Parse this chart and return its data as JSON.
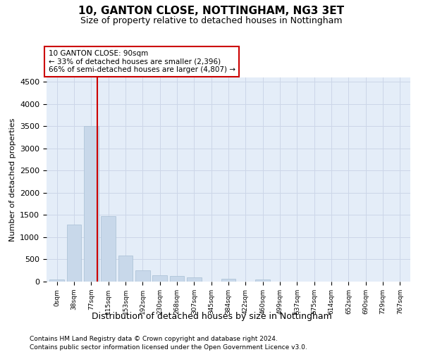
{
  "title": "10, GANTON CLOSE, NOTTINGHAM, NG3 3ET",
  "subtitle": "Size of property relative to detached houses in Nottingham",
  "xlabel": "Distribution of detached houses by size in Nottingham",
  "ylabel": "Number of detached properties",
  "bar_color": "#c8d8ea",
  "bar_edge_color": "#a8bfd4",
  "grid_color": "#ccd6e8",
  "bg_color": "#e4edf8",
  "annotation_box_color": "#cc0000",
  "property_line_color": "#cc0000",
  "annotation_line1": "10 GANTON CLOSE: 90sqm",
  "annotation_line2": "← 33% of detached houses are smaller (2,396)",
  "annotation_line3": "66% of semi-detached houses are larger (4,807) →",
  "categories": [
    "0sqm",
    "38sqm",
    "77sqm",
    "115sqm",
    "153sqm",
    "192sqm",
    "230sqm",
    "268sqm",
    "307sqm",
    "345sqm",
    "384sqm",
    "422sqm",
    "460sqm",
    "499sqm",
    "537sqm",
    "575sqm",
    "614sqm",
    "652sqm",
    "690sqm",
    "729sqm",
    "767sqm"
  ],
  "values": [
    50,
    1280,
    3500,
    1480,
    580,
    260,
    150,
    130,
    90,
    0,
    60,
    0,
    50,
    0,
    0,
    0,
    0,
    0,
    0,
    0,
    0
  ],
  "ylim": [
    0,
    4600
  ],
  "yticks": [
    0,
    500,
    1000,
    1500,
    2000,
    2500,
    3000,
    3500,
    4000,
    4500
  ],
  "footer_line1": "Contains HM Land Registry data © Crown copyright and database right 2024.",
  "footer_line2": "Contains public sector information licensed under the Open Government Licence v3.0."
}
